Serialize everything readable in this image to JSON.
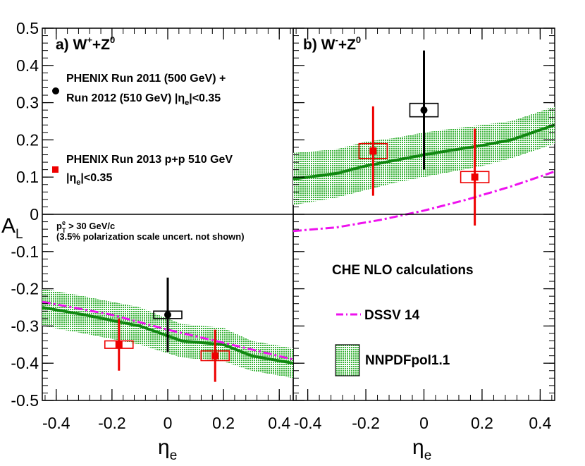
{
  "chart_data": {
    "type": "scatter",
    "ylabel": "A",
    "ylabel_sub": "L",
    "xlabel": "η",
    "xlabel_sub": "e",
    "xlim": [
      -0.45,
      0.45
    ],
    "ylim": [
      -0.5,
      0.5
    ],
    "y_ticks": [
      "0.5",
      "0.4",
      "0.3",
      "0.2",
      "0.1",
      "0",
      "-0.1",
      "-0.2",
      "-0.3",
      "-0.4",
      "-0.5"
    ],
    "x_ticks": [
      "-0.4",
      "-0.2",
      "0",
      "0.2",
      "0.4"
    ],
    "x_ticks_right": [
      "-0.4",
      "-0.2",
      "0",
      "0.2",
      "0.4"
    ],
    "legend": {
      "run2011_line1": "PHENIX Run 2011 (500 GeV) +",
      "run2011_line2a": "Run 2012 (510 GeV) |η",
      "run2011_line2sub": "e",
      "run2011_line2b": "|<0.35",
      "run2013_line1": "PHENIX Run 2013 p+p 510 GeV",
      "run2013_line2a": "|η",
      "run2013_line2sub": "e",
      "run2013_line2b": "|<0.35",
      "cut_a": "p",
      "cut_sup": "e",
      "cut_sub": "T",
      "cut_b": " > 30 GeV/c",
      "pol_note": "(3.5% polarization scale uncert. not shown)",
      "model_title": "CHE NLO calculations",
      "dssv": "DSSV 14",
      "nnpdf": "NNPDFpol1.1"
    },
    "panels": [
      {
        "name": "W+Z0",
        "title_prefix": "a) W",
        "title_sup1": "+",
        "title_mid": "+Z",
        "title_sup2": "0",
        "run2011": {
          "x": [
            0.0
          ],
          "y": [
            -0.27
          ],
          "err_lo": [
            0.1
          ],
          "err_hi": [
            0.1
          ],
          "sys": [
            0.01
          ]
        },
        "run2013": {
          "x": [
            -0.175,
            0.17
          ],
          "y": [
            -0.35,
            -0.38
          ],
          "err_lo": [
            0.07,
            0.07
          ],
          "err_hi": [
            0.07,
            0.07
          ],
          "sys": [
            0.01,
            0.013
          ]
        },
        "nnpdf_x": [
          -0.45,
          -0.3,
          -0.1,
          0.05,
          0.2,
          0.3,
          0.45
        ],
        "nnpdf_center": [
          -0.25,
          -0.27,
          -0.3,
          -0.34,
          -0.35,
          -0.38,
          -0.4
        ],
        "nnpdf_band": [
          0.05,
          0.05,
          0.05,
          0.045,
          0.045,
          0.04,
          0.04
        ],
        "dssv_x": [
          -0.45,
          -0.2,
          0,
          0.2,
          0.45
        ],
        "dssv_y": [
          -0.235,
          -0.27,
          -0.31,
          -0.345,
          -0.39
        ]
      },
      {
        "name": "W-Z0",
        "title_prefix": "b) W",
        "title_sup1": "-",
        "title_mid": "+Z",
        "title_sup2": "0",
        "run2011": {
          "x": [
            0.0
          ],
          "y": [
            0.28
          ],
          "err_lo": [
            0.16
          ],
          "err_hi": [
            0.16
          ],
          "sys": [
            0.018
          ]
        },
        "run2013": {
          "x": [
            -0.175,
            0.175
          ],
          "y": [
            0.17,
            0.1
          ],
          "err_lo": [
            0.12,
            0.13
          ],
          "err_hi": [
            0.12,
            0.13
          ],
          "sys": [
            0.02,
            0.015
          ]
        },
        "nnpdf_x": [
          -0.45,
          -0.3,
          -0.2,
          -0.1,
          0,
          0.2,
          0.3,
          0.45
        ],
        "nnpdf_center": [
          0.095,
          0.11,
          0.13,
          0.145,
          0.16,
          0.185,
          0.2,
          0.24
        ],
        "nnpdf_band": [
          0.07,
          0.065,
          0.065,
          0.06,
          0.06,
          0.055,
          0.05,
          0.05
        ],
        "dssv_x": [
          -0.45,
          -0.3,
          -0.15,
          0,
          0.15,
          0.3,
          0.45
        ],
        "dssv_y": [
          -0.045,
          -0.035,
          -0.015,
          0.01,
          0.04,
          0.075,
          0.115
        ]
      }
    ]
  },
  "colors": {
    "band": "#3cb43c",
    "center_line": "#118811",
    "dssv": "#ee11ee",
    "run2011": "#000000",
    "run2013": "#ee0000"
  }
}
